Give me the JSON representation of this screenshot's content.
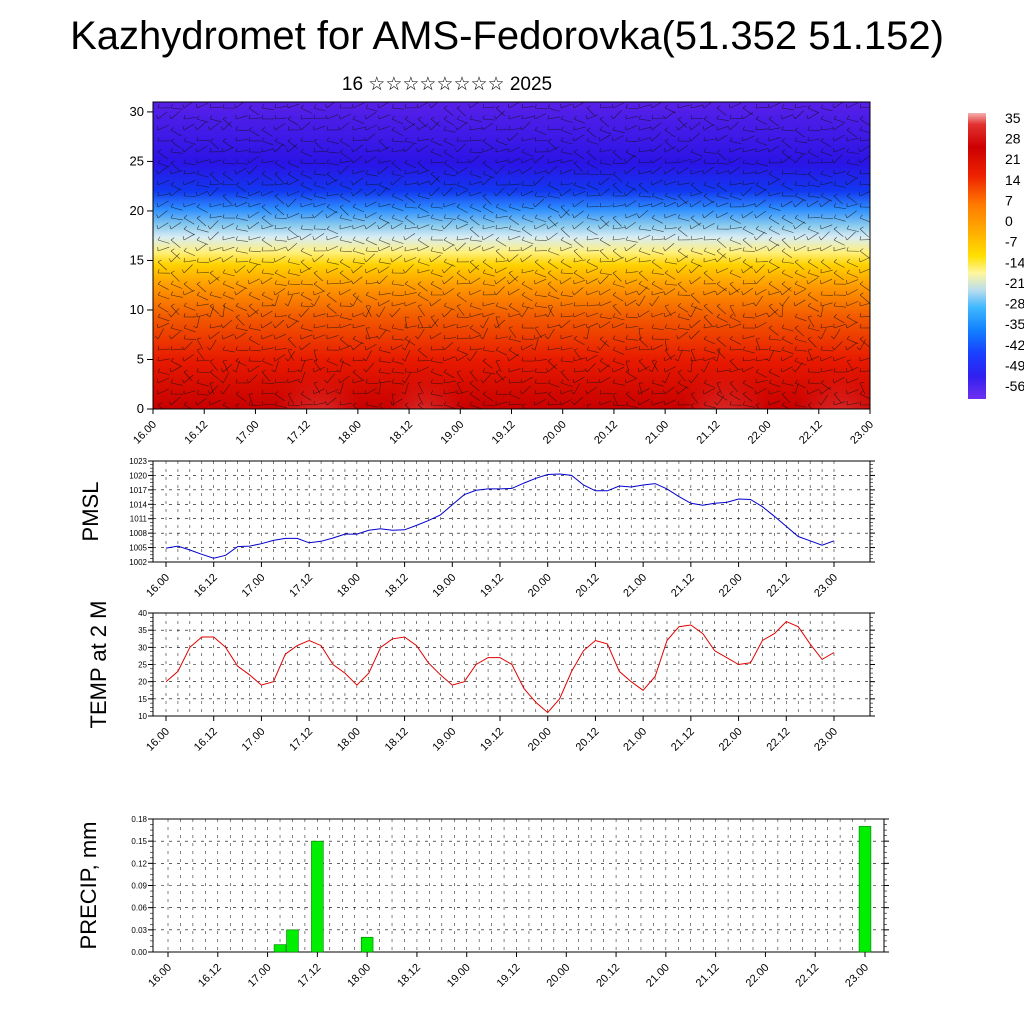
{
  "header": {
    "title": "Kazhydromet for AMS-Fedorovka(51.352 51.152)",
    "subtitle": "16 ☆☆☆☆☆☆☆☆ 2025"
  },
  "colors": {
    "pmsl_line": "#0000cc",
    "temp_line": "#e00000",
    "precip_bar": "#00ee00"
  },
  "chart_data": [
    {
      "type": "heatmap",
      "title": "",
      "x_tick_labels": [
        "16.00",
        "16.12",
        "17.00",
        "17.12",
        "18.00",
        "18.12",
        "19.00",
        "19.12",
        "20.00",
        "20.12",
        "21.00",
        "21.12",
        "22.00",
        "22.12",
        "23.00"
      ],
      "y_tick_labels": [
        "0",
        "5",
        "10",
        "15",
        "20",
        "25",
        "30"
      ],
      "ylim": [
        0,
        31
      ],
      "colorbar_labels": [
        "35",
        "28",
        "21",
        "14",
        "7",
        "0",
        "-7",
        "-14",
        "-21",
        "-28",
        "-35",
        "-42",
        "-49",
        "-56"
      ],
      "colorbar_range": [
        -60,
        38
      ],
      "temperature_profile": [
        {
          "height": 0,
          "value": 28
        },
        {
          "height": 5,
          "value": 24
        },
        {
          "height": 10,
          "value": 14
        },
        {
          "height": 14,
          "value": 2
        },
        {
          "height": 16,
          "value": -7
        },
        {
          "height": 18,
          "value": -18
        },
        {
          "height": 20,
          "value": -28
        },
        {
          "height": 22,
          "value": -40
        },
        {
          "height": 25,
          "value": -50
        },
        {
          "height": 30,
          "value": -58
        }
      ],
      "overlay": "wind barbs"
    },
    {
      "type": "line",
      "ylabel": "PMSL",
      "x_tick_labels": [
        "16.00",
        "16.12",
        "17.00",
        "17.12",
        "18.00",
        "18.12",
        "19.00",
        "19.12",
        "20.00",
        "20.12",
        "21.00",
        "21.12",
        "22.00",
        "22.12",
        "23.00"
      ],
      "y_tick_labels": [
        "1002",
        "1005",
        "1008",
        "1011",
        "1014",
        "1017",
        "1020",
        "1023"
      ],
      "ylim": [
        1002,
        1023
      ],
      "x_step_hours": 3,
      "values": [
        1004.9,
        1005.3,
        1004.5,
        1003.6,
        1002.8,
        1003.4,
        1005.2,
        1005.3,
        1005.8,
        1006.5,
        1006.9,
        1006.9,
        1006.0,
        1006.3,
        1007.0,
        1007.8,
        1007.8,
        1008.6,
        1008.9,
        1008.6,
        1008.7,
        1009.6,
        1010.6,
        1011.8,
        1013.9,
        1016.0,
        1016.9,
        1017.2,
        1017.2,
        1017.3,
        1018.4,
        1019.4,
        1020.2,
        1020.3,
        1020.0,
        1018.0,
        1016.8,
        1016.8,
        1017.8,
        1017.6,
        1018.0,
        1018.3,
        1017.2,
        1015.6,
        1014.2,
        1013.8,
        1014.2,
        1014.4,
        1015.1,
        1015.0,
        1013.5,
        1011.5,
        1009.4,
        1007.3,
        1006.4,
        1005.5,
        1006.4
      ]
    },
    {
      "type": "line",
      "ylabel": "TEMP at 2 M",
      "x_tick_labels": [
        "16.00",
        "16.12",
        "17.00",
        "17.12",
        "18.00",
        "18.12",
        "19.00",
        "19.12",
        "20.00",
        "20.12",
        "21.00",
        "21.12",
        "22.00",
        "22.12",
        "23.00"
      ],
      "y_tick_labels": [
        "10",
        "15",
        "20",
        "25",
        "30",
        "35",
        "40"
      ],
      "ylim": [
        10,
        40
      ],
      "x_step_hours": 3,
      "values": [
        20,
        23,
        30,
        33,
        33,
        30,
        24.5,
        22,
        19,
        20,
        28,
        30.5,
        32,
        30.5,
        25,
        22.5,
        19,
        22.5,
        30,
        32.5,
        33,
        30.5,
        25.5,
        22,
        19,
        20,
        25,
        27,
        27,
        25,
        18,
        14,
        11,
        15,
        23,
        29,
        32,
        31,
        23,
        20,
        17.5,
        21.5,
        32,
        36,
        36.5,
        34,
        29,
        27,
        25,
        25.5,
        32,
        34,
        37.5,
        36,
        31,
        26.5,
        28.5
      ]
    },
    {
      "type": "bar",
      "ylabel": "PRECIP, mm",
      "x_tick_labels": [
        "16.00",
        "16.12",
        "17.00",
        "17.12",
        "18.00",
        "18.12",
        "19.00",
        "19.12",
        "20.00",
        "20.12",
        "21.00",
        "21.12",
        "22.00",
        "22.12",
        "23.00"
      ],
      "y_tick_labels": [
        "0.00",
        "0.03",
        "0.06",
        "0.09",
        "0.12",
        "0.15",
        "0.18"
      ],
      "ylim": [
        0,
        0.18
      ],
      "x_step_hours": 3,
      "values": [
        0,
        0,
        0,
        0,
        0,
        0,
        0,
        0,
        0,
        0.01,
        0.03,
        0,
        0.15,
        0,
        0,
        0,
        0.02,
        0,
        0,
        0,
        0,
        0,
        0,
        0,
        0,
        0,
        0,
        0,
        0,
        0,
        0,
        0,
        0,
        0,
        0,
        0,
        0,
        0,
        0,
        0,
        0,
        0,
        0,
        0,
        0,
        0,
        0,
        0,
        0,
        0,
        0,
        0,
        0,
        0,
        0,
        0,
        0.17
      ]
    }
  ]
}
